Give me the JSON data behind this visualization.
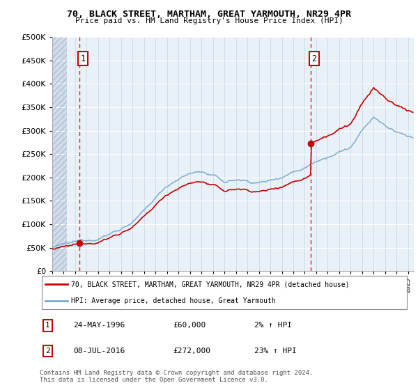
{
  "title1": "70, BLACK STREET, MARTHAM, GREAT YARMOUTH, NR29 4PR",
  "title2": "Price paid vs. HM Land Registry's House Price Index (HPI)",
  "legend_line1": "70, BLACK STREET, MARTHAM, GREAT YARMOUTH, NR29 4PR (detached house)",
  "legend_line2": "HPI: Average price, detached house, Great Yarmouth",
  "annotation1_date": "24-MAY-1996",
  "annotation1_price": "£60,000",
  "annotation1_hpi": "2% ↑ HPI",
  "annotation2_date": "08-JUL-2016",
  "annotation2_price": "£272,000",
  "annotation2_hpi": "23% ↑ HPI",
  "footer": "Contains HM Land Registry data © Crown copyright and database right 2024.\nThis data is licensed under the Open Government Licence v3.0.",
  "sale1_x": 1996.38,
  "sale1_y": 60000,
  "sale2_x": 2016.5,
  "sale2_y": 272000,
  "ylim": [
    0,
    500000
  ],
  "xlim_start": 1994.0,
  "xlim_end": 2025.5,
  "hatch_end": 1995.25,
  "red_color": "#cc0000",
  "blue_color": "#7aabcf",
  "plot_bg": "#e8f0f8"
}
